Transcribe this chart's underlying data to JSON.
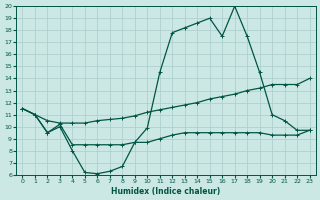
{
  "bg_color": "#cce8e4",
  "grid_color": "#aacccc",
  "line_color": "#005544",
  "xlabel": "Humidex (Indice chaleur)",
  "xlim": [
    -0.5,
    23.5
  ],
  "ylim": [
    6,
    20
  ],
  "xticks": [
    0,
    1,
    2,
    3,
    4,
    5,
    6,
    7,
    8,
    9,
    10,
    11,
    12,
    13,
    14,
    15,
    16,
    17,
    18,
    19,
    20,
    21,
    22,
    23
  ],
  "yticks": [
    6,
    7,
    8,
    9,
    10,
    11,
    12,
    13,
    14,
    15,
    16,
    17,
    18,
    19,
    20
  ],
  "line1_x": [
    0,
    1,
    2,
    3,
    4,
    5,
    6,
    7,
    8,
    9,
    10,
    11,
    12,
    13,
    14,
    15,
    16,
    17,
    18,
    19,
    20,
    21,
    22,
    23
  ],
  "line1_y": [
    11.5,
    11.0,
    9.5,
    10.0,
    8.0,
    6.2,
    6.1,
    6.3,
    6.7,
    8.7,
    9.9,
    14.5,
    17.8,
    18.2,
    18.6,
    19.0,
    17.5,
    20.0,
    17.5,
    14.5,
    11.0,
    10.5,
    9.7,
    9.7
  ],
  "line2_x": [
    0,
    1,
    2,
    3,
    4,
    5,
    6,
    7,
    8,
    9,
    10,
    11,
    12,
    13,
    14,
    15,
    16,
    17,
    18,
    19,
    20,
    21,
    22,
    23
  ],
  "line2_y": [
    11.5,
    11.0,
    9.5,
    10.2,
    8.5,
    8.5,
    8.5,
    8.5,
    8.5,
    8.7,
    8.7,
    9.0,
    9.3,
    9.5,
    9.5,
    9.5,
    9.5,
    9.5,
    9.5,
    9.5,
    9.3,
    9.3,
    9.3,
    9.7
  ],
  "line3_x": [
    0,
    1,
    2,
    3,
    4,
    5,
    6,
    7,
    8,
    9,
    10,
    11,
    12,
    13,
    14,
    15,
    16,
    17,
    18,
    19,
    20,
    21,
    22,
    23
  ],
  "line3_y": [
    11.5,
    11.0,
    10.5,
    10.3,
    10.3,
    10.3,
    10.5,
    10.6,
    10.7,
    10.9,
    11.2,
    11.4,
    11.6,
    11.8,
    12.0,
    12.3,
    12.5,
    12.7,
    13.0,
    13.2,
    13.5,
    13.5,
    13.5,
    14.0
  ]
}
